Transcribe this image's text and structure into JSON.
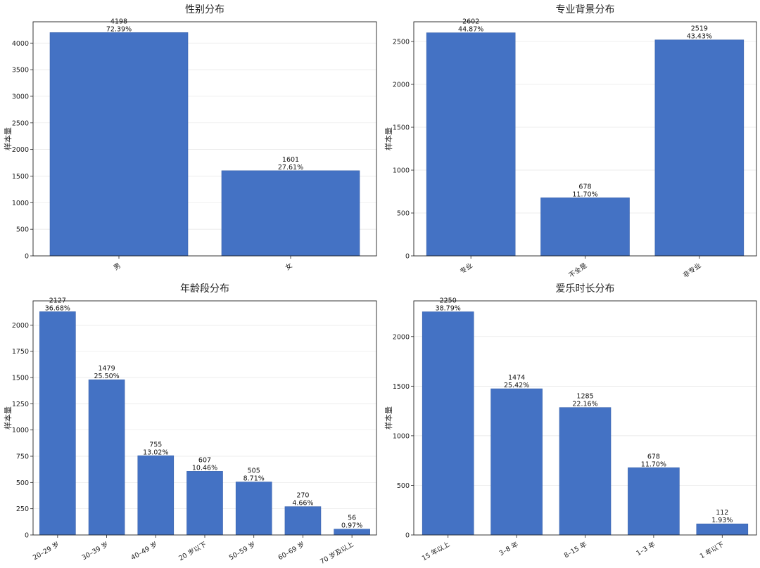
{
  "chart_data": [
    {
      "type": "bar",
      "title": "性别分布",
      "ylabel": "样本量",
      "categories": [
        "男",
        "女"
      ],
      "values": [
        4198,
        1601
      ],
      "percent_labels": [
        "72.39%",
        "27.61%"
      ],
      "ylim": [
        0,
        4400
      ],
      "yticks": [
        0,
        500,
        1000,
        1500,
        2000,
        2500,
        3000,
        3500,
        4000
      ],
      "grid": true
    },
    {
      "type": "bar",
      "title": "专业背景分布",
      "ylabel": "样本量",
      "categories": [
        "专业",
        "不全是",
        "非专业"
      ],
      "values": [
        2602,
        678,
        2519
      ],
      "percent_labels": [
        "44.87%",
        "11.70%",
        "43.43%"
      ],
      "ylim": [
        0,
        2730
      ],
      "yticks": [
        0,
        500,
        1000,
        1500,
        2000,
        2500
      ],
      "grid": true
    },
    {
      "type": "bar",
      "title": "年龄段分布",
      "ylabel": "样本量",
      "categories": [
        "20–29 岁",
        "30–39 岁",
        "40–49 岁",
        "20 岁以下",
        "50–59 岁",
        "60–69 岁",
        "70 岁及以上"
      ],
      "values": [
        2127,
        1479,
        755,
        607,
        505,
        270,
        56
      ],
      "percent_labels": [
        "36.68%",
        "25.50%",
        "13.02%",
        "10.46%",
        "8.71%",
        "4.66%",
        "0.97%"
      ],
      "ylim": [
        0,
        2230
      ],
      "yticks": [
        0,
        250,
        500,
        750,
        1000,
        1250,
        1500,
        1750,
        2000
      ],
      "grid": true
    },
    {
      "type": "bar",
      "title": "爱乐时长分布",
      "ylabel": "样本量",
      "categories": [
        "15 年以上",
        "3–8 年",
        "8–15 年",
        "1–3 年",
        "1 年以下"
      ],
      "values": [
        2250,
        1474,
        1285,
        678,
        112
      ],
      "percent_labels": [
        "38.79%",
        "25.42%",
        "22.16%",
        "11.70%",
        "1.93%"
      ],
      "ylim": [
        0,
        2360
      ],
      "yticks": [
        0,
        500,
        1000,
        1500,
        2000
      ],
      "grid": true
    }
  ]
}
